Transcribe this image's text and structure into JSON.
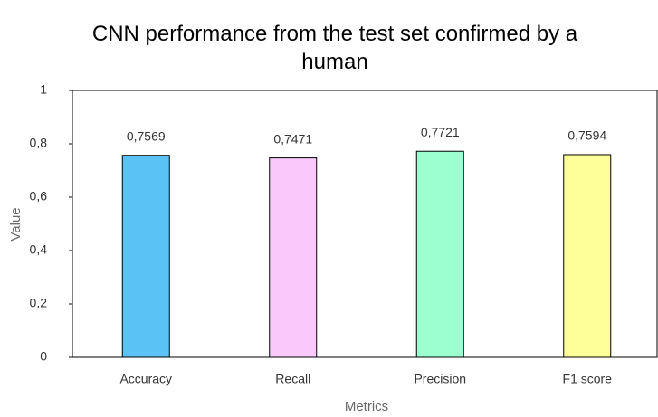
{
  "chart_data": {
    "type": "bar",
    "title": "CNN performance from the test set confirmed by a human",
    "xlabel": "Metrics",
    "ylabel": "Value",
    "categories": [
      "Accuracy",
      "Recall",
      "Precision",
      "F1 score"
    ],
    "values": [
      0.7569,
      0.7471,
      0.7721,
      0.7594
    ],
    "value_labels": [
      "0,7569",
      "0,7471",
      "0,7721",
      "0,7594"
    ],
    "colors": [
      "#5bc2f5",
      "#fac8fa",
      "#9cffcf",
      "#ffff99"
    ],
    "ylim": [
      0,
      1
    ],
    "yticks": [
      0,
      {
        "value": 0.2,
        "label": "0,2"
      },
      {
        "value": 0.4,
        "label": "0,4"
      },
      {
        "value": 0.6,
        "label": "0,6"
      },
      {
        "value": 0.8,
        "label": "0,8"
      },
      1
    ],
    "grid": false
  }
}
